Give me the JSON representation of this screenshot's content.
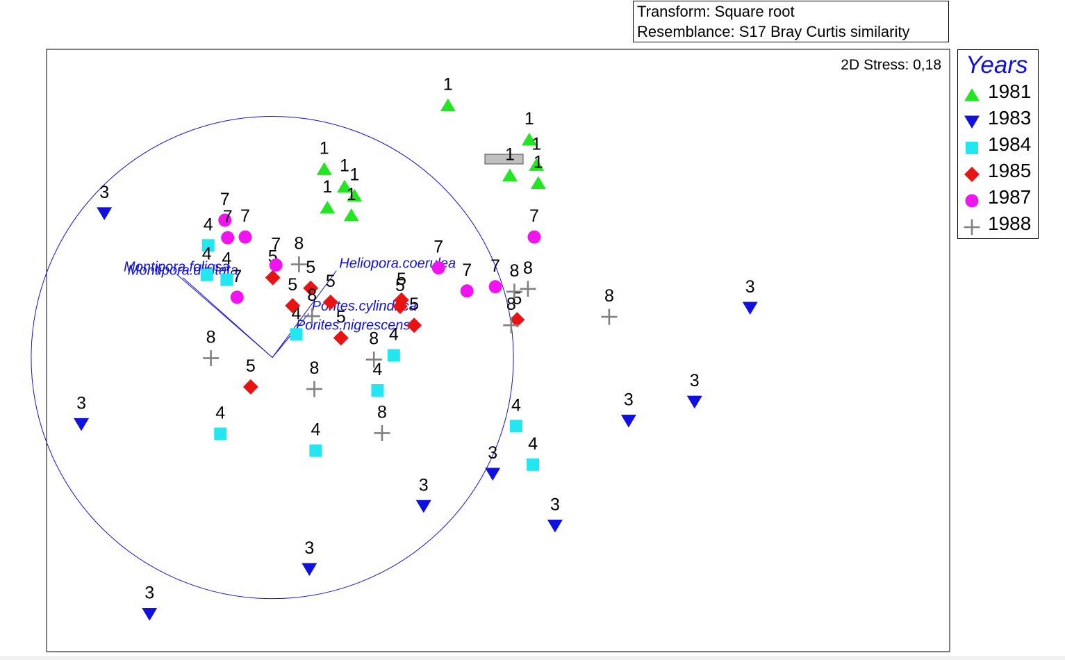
{
  "header": {
    "transform": "Transform: Square root",
    "resemblance": "Resemblance: S17 Bray Curtis similarity"
  },
  "stress_label": "2D Stress: 0,18",
  "legend": {
    "title": "Years",
    "items": [
      {
        "label": "1981",
        "symbol": "triangle-up",
        "color": "#22e622"
      },
      {
        "label": "1983",
        "symbol": "triangle-down",
        "color": "#1010e0"
      },
      {
        "label": "1984",
        "symbol": "square",
        "color": "#22e6f0"
      },
      {
        "label": "1985",
        "symbol": "diamond",
        "color": "#e81414"
      },
      {
        "label": "1987",
        "symbol": "circle",
        "color": "#f014f0"
      },
      {
        "label": "1988",
        "symbol": "plus",
        "color": "#808080"
      }
    ]
  },
  "chart_data": {
    "type": "scatter",
    "title": "",
    "xlabel": "",
    "ylabel": "",
    "xlim": [
      -0.5,
      1.5
    ],
    "ylim": [
      -0.84,
      0.88
    ],
    "grid": false,
    "legend_position": "right",
    "vector_circle_radius": 0.534,
    "series": [
      {
        "name": "1981",
        "points": [
          {
            "x": 0.389,
            "y": 0.72,
            "label": "1"
          },
          {
            "x": 0.115,
            "y": 0.538,
            "label": "1"
          },
          {
            "x": 0.16,
            "y": 0.488,
            "label": "1"
          },
          {
            "x": 0.182,
            "y": 0.462,
            "label": "1"
          },
          {
            "x": 0.122,
            "y": 0.428,
            "label": "1"
          },
          {
            "x": 0.175,
            "y": 0.406,
            "label": "1"
          },
          {
            "x": 0.569,
            "y": 0.622,
            "label": "1"
          },
          {
            "x": 0.585,
            "y": 0.55,
            "label": "1"
          },
          {
            "x": 0.526,
            "y": 0.52,
            "label": "1"
          },
          {
            "x": 0.589,
            "y": 0.498,
            "label": "1"
          }
        ]
      },
      {
        "name": "1983",
        "points": [
          {
            "x": -0.372,
            "y": 0.412,
            "label": "3"
          },
          {
            "x": 1.058,
            "y": 0.142,
            "label": "3"
          },
          {
            "x": -0.423,
            "y": -0.19,
            "label": "3"
          },
          {
            "x": 0.789,
            "y": -0.18,
            "label": "3"
          },
          {
            "x": 0.935,
            "y": -0.126,
            "label": "3"
          },
          {
            "x": 0.488,
            "y": -0.332,
            "label": "3"
          },
          {
            "x": 0.335,
            "y": -0.424,
            "label": "3"
          },
          {
            "x": 0.626,
            "y": -0.48,
            "label": "3"
          },
          {
            "x": 0.082,
            "y": -0.604,
            "label": "3"
          },
          {
            "x": -0.272,
            "y": -0.732,
            "label": "3"
          }
        ]
      },
      {
        "name": "1984",
        "points": [
          {
            "x": -0.142,
            "y": 0.32,
            "label": "4"
          },
          {
            "x": -0.145,
            "y": 0.236,
            "label": "4"
          },
          {
            "x": -0.101,
            "y": 0.222,
            "label": "4"
          },
          {
            "x": 0.053,
            "y": 0.066,
            "label": "4"
          },
          {
            "x": 0.269,
            "y": 0.006,
            "label": "4"
          },
          {
            "x": 0.233,
            "y": -0.094,
            "label": "4"
          },
          {
            "x": -0.115,
            "y": -0.218,
            "label": "4"
          },
          {
            "x": 0.096,
            "y": -0.266,
            "label": "4"
          },
          {
            "x": 0.54,
            "y": -0.196,
            "label": "4"
          },
          {
            "x": 0.577,
            "y": -0.306,
            "label": "4"
          }
        ]
      },
      {
        "name": "1985",
        "points": [
          {
            "x": 0.001,
            "y": 0.228,
            "label": "5"
          },
          {
            "x": 0.085,
            "y": 0.198,
            "label": "5"
          },
          {
            "x": 0.129,
            "y": 0.158,
            "label": "5"
          },
          {
            "x": 0.045,
            "y": 0.148,
            "label": "5"
          },
          {
            "x": 0.286,
            "y": 0.164,
            "label": "5"
          },
          {
            "x": 0.283,
            "y": 0.146,
            "label": "5"
          },
          {
            "x": 0.314,
            "y": 0.092,
            "label": "5"
          },
          {
            "x": 0.152,
            "y": 0.056,
            "label": "5"
          },
          {
            "x": 0.542,
            "y": 0.108,
            "label": "5"
          },
          {
            "x": -0.048,
            "y": -0.084,
            "label": "5"
          }
        ]
      },
      {
        "name": "1987",
        "points": [
          {
            "x": -0.105,
            "y": 0.392,
            "label": "7"
          },
          {
            "x": -0.099,
            "y": 0.342,
            "label": "7"
          },
          {
            "x": -0.06,
            "y": 0.344,
            "label": "7"
          },
          {
            "x": 0.008,
            "y": 0.264,
            "label": "7"
          },
          {
            "x": -0.078,
            "y": 0.172,
            "label": "7"
          },
          {
            "x": 0.368,
            "y": 0.256,
            "label": "7"
          },
          {
            "x": 0.431,
            "y": 0.19,
            "label": "7"
          },
          {
            "x": 0.494,
            "y": 0.202,
            "label": "7"
          },
          {
            "x": 0.58,
            "y": 0.344,
            "label": "7"
          }
        ]
      },
      {
        "name": "1988",
        "points": [
          {
            "x": 0.059,
            "y": 0.266,
            "label": "8"
          },
          {
            "x": 0.088,
            "y": 0.118,
            "label": "8"
          },
          {
            "x": 0.225,
            "y": -0.006,
            "label": "8"
          },
          {
            "x": 0.093,
            "y": -0.09,
            "label": "8"
          },
          {
            "x": 0.243,
            "y": -0.216,
            "label": "8"
          },
          {
            "x": -0.136,
            "y": -0.002,
            "label": "8"
          },
          {
            "x": 0.536,
            "y": 0.188,
            "label": "8"
          },
          {
            "x": 0.566,
            "y": 0.196,
            "label": "8"
          },
          {
            "x": 0.529,
            "y": 0.092,
            "label": "8"
          },
          {
            "x": 0.746,
            "y": 0.116,
            "label": "8"
          }
        ]
      }
    ],
    "vectors": [
      {
        "name": "Montipora.foliosa",
        "x": -0.212,
        "y": 0.238
      },
      {
        "name": "Montipora.digitata",
        "x": -0.198,
        "y": 0.228
      },
      {
        "name": "Heliopora.coerulea",
        "x": 0.142,
        "y": 0.248
      },
      {
        "name": "Porites.cylindrica",
        "x": 0.081,
        "y": 0.126
      },
      {
        "name": "Porites.nigrescens",
        "x": 0.046,
        "y": 0.072
      }
    ]
  }
}
